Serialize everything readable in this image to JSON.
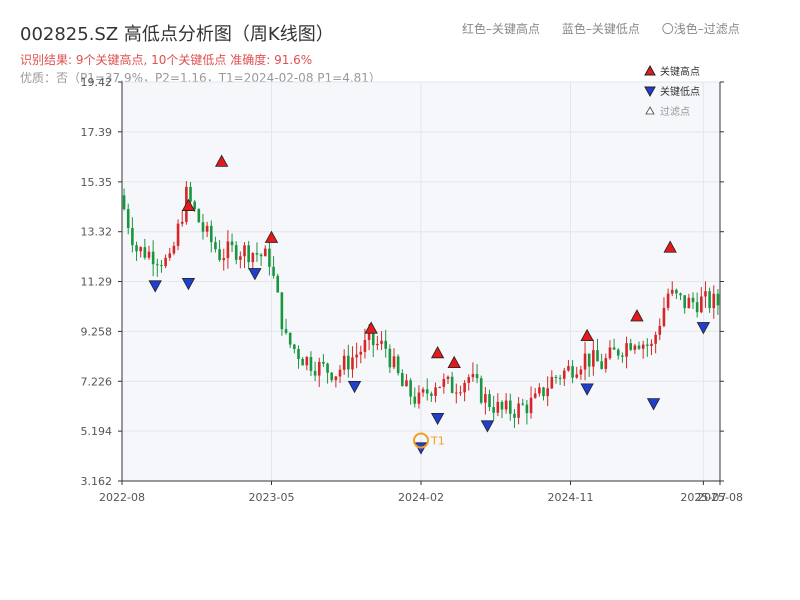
{
  "title": "002825.SZ 高低点分析图（周K线图）",
  "subtitle_result": "识别结果: 9个关键高点, 10个关键低点   准确度: 91.6%",
  "subtitle_quality": "优质：否（P1=37.9%，P2=1.16，T1=2024-02-08 P1=4.81）",
  "top_legend": {
    "red": "红色–关键高点",
    "blue": "蓝色–关键低点",
    "light": "〇浅色–过滤点"
  },
  "legend": {
    "high": "关键高点",
    "low": "关键低点",
    "filtered": "过滤点"
  },
  "colors": {
    "up": "#d62728",
    "down": "#1a9641",
    "high_marker": "#e31a1c",
    "low_marker": "#1f3fd0",
    "t1_circle": "#f0a020",
    "plot_bg": "#f5f7fa",
    "grid": "#e3e6eb"
  },
  "chart_data": {
    "type": "candlestick",
    "x_ticks": [
      "2022-08",
      "2023-05",
      "2024-02",
      "2024-11",
      "2025-07",
      "2025-08"
    ],
    "y_ticks": [
      "3.162",
      "5.194",
      "7.226",
      "9.258",
      "11.29",
      "13.32",
      "15.35",
      "17.39",
      "19.42"
    ],
    "y_range": [
      3.162,
      19.42
    ],
    "x_range": [
      "2022-08",
      "2025-08"
    ],
    "grid": true,
    "legend_position": "top-right",
    "t1_label": "T1",
    "t1": {
      "date": "2024-02",
      "price": 4.81
    },
    "close_series": [
      {
        "date": "2022-08",
        "close": 14.8
      },
      {
        "date": "2022-09",
        "close": 12.6
      },
      {
        "date": "2022-10",
        "close": 12.4
      },
      {
        "date": "2022-11",
        "close": 12.0
      },
      {
        "date": "2022-12",
        "close": 14.8
      },
      {
        "date": "2023-01",
        "close": 13.4
      },
      {
        "date": "2023-02",
        "close": 12.4
      },
      {
        "date": "2023-03",
        "close": 12.6
      },
      {
        "date": "2023-04",
        "close": 12.5
      },
      {
        "date": "2023-05",
        "close": 12.2
      },
      {
        "date": "2023-06",
        "close": 8.9
      },
      {
        "date": "2023-07",
        "close": 8.2
      },
      {
        "date": "2023-08",
        "close": 7.8
      },
      {
        "date": "2023-09",
        "close": 7.6
      },
      {
        "date": "2023-10",
        "close": 8.2
      },
      {
        "date": "2023-11",
        "close": 8.8
      },
      {
        "date": "2023-12",
        "close": 8.6
      },
      {
        "date": "2024-01",
        "close": 7.0
      },
      {
        "date": "2024-02",
        "close": 6.4
      },
      {
        "date": "2024-03",
        "close": 7.2
      },
      {
        "date": "2024-04",
        "close": 7.0
      },
      {
        "date": "2024-05",
        "close": 7.4
      },
      {
        "date": "2024-06",
        "close": 6.5
      },
      {
        "date": "2024-07",
        "close": 6.0
      },
      {
        "date": "2024-08",
        "close": 6.1
      },
      {
        "date": "2024-09",
        "close": 6.4
      },
      {
        "date": "2024-10",
        "close": 7.3
      },
      {
        "date": "2024-11",
        "close": 7.7
      },
      {
        "date": "2024-12",
        "close": 8.2
      },
      {
        "date": "2025-01",
        "close": 7.9
      },
      {
        "date": "2025-02",
        "close": 8.5
      },
      {
        "date": "2025-03",
        "close": 9.0
      },
      {
        "date": "2025-04",
        "close": 8.6
      },
      {
        "date": "2025-05",
        "close": 10.8
      },
      {
        "date": "2025-06",
        "close": 10.4
      },
      {
        "date": "2025-07",
        "close": 10.5
      },
      {
        "date": "2025-08",
        "close": 10.4
      }
    ],
    "key_highs": [
      {
        "date": "2022-12",
        "price": 14.1
      },
      {
        "date": "2023-02",
        "price": 15.9
      },
      {
        "date": "2023-05",
        "price": 12.8
      },
      {
        "date": "2023-11",
        "price": 9.1
      },
      {
        "date": "2024-03",
        "price": 8.1
      },
      {
        "date": "2024-04",
        "price": 7.7
      },
      {
        "date": "2024-12",
        "price": 8.8
      },
      {
        "date": "2025-03",
        "price": 9.6
      },
      {
        "date": "2025-05",
        "price": 12.4
      }
    ],
    "key_lows": [
      {
        "date": "2022-10",
        "price": 11.4
      },
      {
        "date": "2022-12",
        "price": 11.5
      },
      {
        "date": "2023-04",
        "price": 11.9
      },
      {
        "date": "2023-10",
        "price": 7.3
      },
      {
        "date": "2024-02",
        "price": 4.8
      },
      {
        "date": "2024-03",
        "price": 6.0
      },
      {
        "date": "2024-06",
        "price": 5.7
      },
      {
        "date": "2024-12",
        "price": 7.2
      },
      {
        "date": "2025-04",
        "price": 6.6
      },
      {
        "date": "2025-07",
        "price": 9.7
      }
    ]
  }
}
